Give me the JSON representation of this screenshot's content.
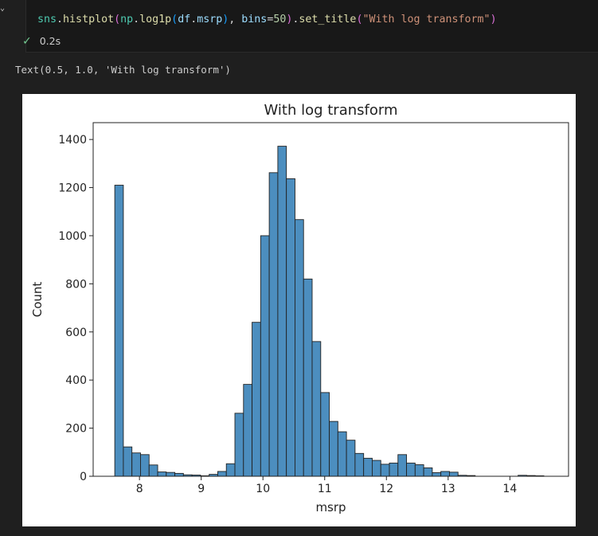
{
  "cell": {
    "code_tokens": [
      {
        "t": "sns",
        "c": "tok-var"
      },
      {
        "t": ".",
        "c": "tok-pun"
      },
      {
        "t": "histplot",
        "c": "tok-fn"
      },
      {
        "t": "(",
        "c": "tok-par"
      },
      {
        "t": "np",
        "c": "tok-var"
      },
      {
        "t": ".",
        "c": "tok-pun"
      },
      {
        "t": "log1p",
        "c": "tok-fn"
      },
      {
        "t": "(",
        "c": "tok-par2"
      },
      {
        "t": "df",
        "c": "tok-id"
      },
      {
        "t": ".",
        "c": "tok-pun"
      },
      {
        "t": "msrp",
        "c": "tok-id"
      },
      {
        "t": ")",
        "c": "tok-par2"
      },
      {
        "t": ", ",
        "c": "tok-pun"
      },
      {
        "t": "bins",
        "c": "tok-id"
      },
      {
        "t": "=",
        "c": "tok-pun"
      },
      {
        "t": "50",
        "c": "tok-num"
      },
      {
        "t": ")",
        "c": "tok-par"
      },
      {
        "t": ".",
        "c": "tok-pun"
      },
      {
        "t": "set_title",
        "c": "tok-fn"
      },
      {
        "t": "(",
        "c": "tok-par"
      },
      {
        "t": "\"With log transform\"",
        "c": "tok-str"
      },
      {
        "t": ")",
        "c": "tok-par"
      }
    ],
    "status_time": "0.2s",
    "check_symbol": "✓"
  },
  "output": {
    "text": "Text(0.5, 1.0, 'With log transform')"
  },
  "chart_data": {
    "type": "bar",
    "title": "With log transform",
    "xlabel": "msrp",
    "ylabel": "Count",
    "xlim": [
      7.25,
      14.95
    ],
    "ylim": [
      0,
      1470
    ],
    "xticks": [
      8,
      9,
      10,
      11,
      12,
      13,
      14
    ],
    "yticks": [
      0,
      200,
      400,
      600,
      800,
      1000,
      1200,
      1400
    ],
    "bin_start": 7.6,
    "bin_width": 0.139,
    "bar_color": "#4c8ebf",
    "edge_color": "#222222",
    "values": [
      1210,
      122,
      97,
      90,
      47,
      18,
      16,
      12,
      6,
      5,
      2,
      8,
      20,
      52,
      262,
      382,
      640,
      1000,
      1262,
      1372,
      1237,
      1067,
      820,
      560,
      348,
      228,
      185,
      150,
      95,
      75,
      66,
      50,
      55,
      90,
      55,
      48,
      35,
      15,
      20,
      17,
      4,
      3,
      0,
      0,
      0,
      0,
      0,
      4,
      3,
      2
    ]
  }
}
